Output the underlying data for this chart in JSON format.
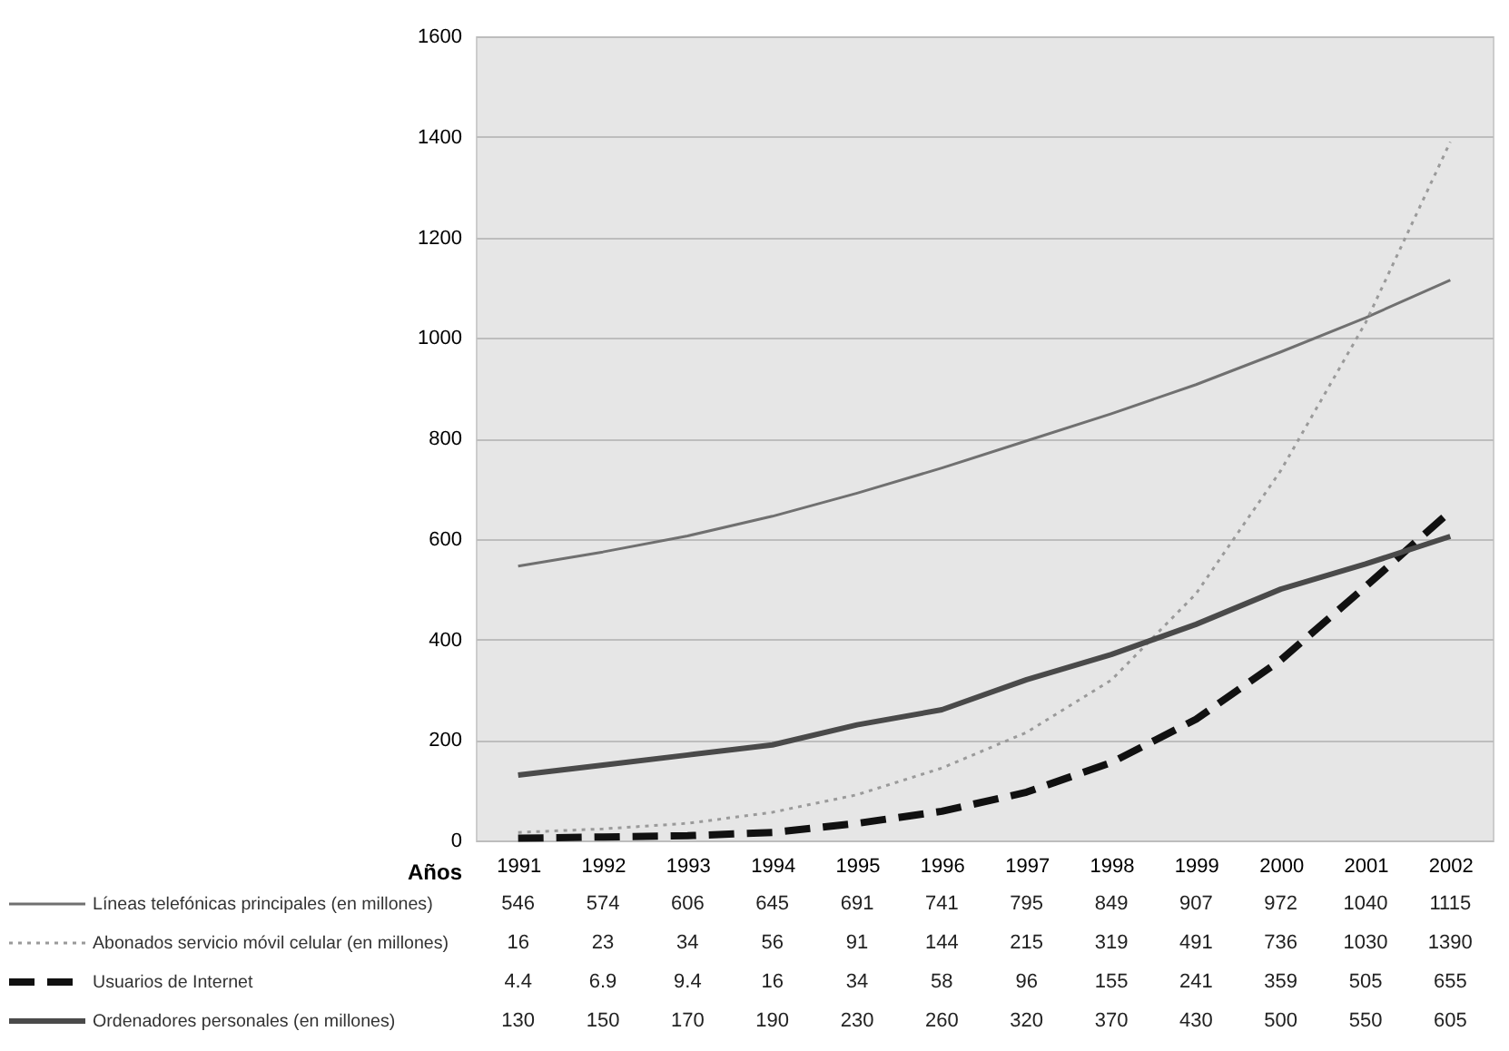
{
  "chart_data": {
    "type": "line",
    "xlabel": "Años",
    "categories": [
      "1991",
      "1992",
      "1993",
      "1994",
      "1995",
      "1996",
      "1997",
      "1998",
      "1999",
      "2000",
      "2001",
      "2002"
    ],
    "series": [
      {
        "name": "Líneas telefónicas principales (en millones)",
        "color": "#707070",
        "line_style": "solid",
        "values": [
          546,
          574,
          606,
          645,
          691,
          741,
          795,
          849,
          907,
          972,
          1040,
          1115
        ]
      },
      {
        "name": "Abonados servicio móvil celular (en millones)",
        "color": "#9a9a9a",
        "line_style": "dotted",
        "values": [
          16,
          23,
          34,
          56,
          91,
          144,
          215,
          319,
          491,
          736,
          1030,
          1390
        ]
      },
      {
        "name": "Usuarios de Internet",
        "color": "#111111",
        "line_style": "dashed",
        "values": [
          4.4,
          6.9,
          9.4,
          16,
          34,
          58,
          96,
          155,
          241,
          359,
          505,
          655
        ]
      },
      {
        "name": "Ordenadores personales (en millones)",
        "color": "#4a4a4a",
        "line_style": "solid",
        "values": [
          130,
          150,
          170,
          190,
          230,
          260,
          320,
          370,
          430,
          500,
          550,
          605
        ]
      }
    ],
    "ylim": [
      0,
      1600
    ],
    "yticks": [
      0,
      200,
      400,
      600,
      800,
      1000,
      1200,
      1400,
      1600
    ],
    "grid": "y",
    "data_labels": true,
    "legend": "bottom",
    "marker": "none"
  }
}
